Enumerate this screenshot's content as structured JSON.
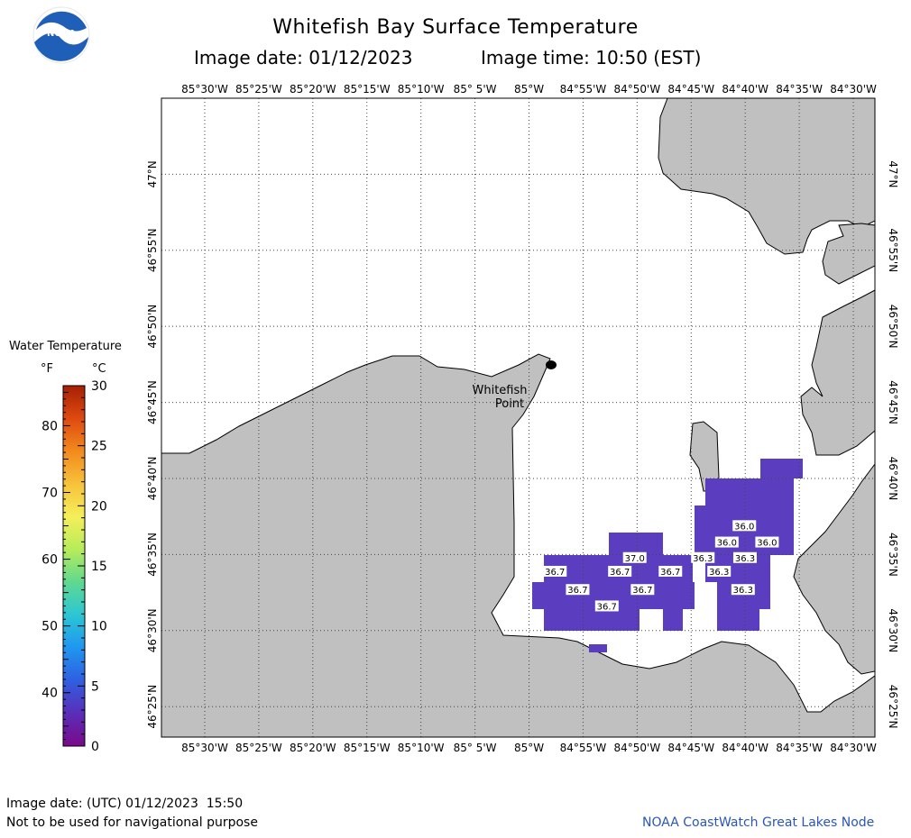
{
  "header": {
    "title": "Whitefish Bay Surface Temperature",
    "image_date": "Image date: 01/12/2023",
    "image_time": "Image time: 10:50 (EST)"
  },
  "logo": {
    "text": "NOAA",
    "icon": "noaa-logo-icon"
  },
  "map": {
    "lon_labels": [
      "85°30'W",
      "85°25'W",
      "85°20'W",
      "85°15'W",
      "85°10'W",
      "85° 5'W",
      "85°W",
      "84°55'W",
      "84°50'W",
      "84°45'W",
      "84°40'W",
      "84°35'W",
      "84°30'W"
    ],
    "lat_labels": [
      "47°N",
      "46°55'N",
      "46°50'N",
      "46°45'N",
      "46°40'N",
      "46°35'N",
      "46°30'N",
      "46°25'N"
    ],
    "place_label": [
      "Whitefish",
      "Point"
    ],
    "temperature_labels": [
      {
        "value": "36.0",
        "lon": -84.668,
        "lat": 46.615
      },
      {
        "value": "36.0",
        "lon": -84.695,
        "lat": 46.597
      },
      {
        "value": "36.0",
        "lon": -84.633,
        "lat": 46.597
      },
      {
        "value": "37.0",
        "lon": -84.837,
        "lat": 46.58
      },
      {
        "value": "36.3",
        "lon": -84.732,
        "lat": 46.58
      },
      {
        "value": "36.3",
        "lon": -84.667,
        "lat": 46.58
      },
      {
        "value": "36.7",
        "lon": -84.96,
        "lat": 46.565
      },
      {
        "value": "36.7",
        "lon": -84.86,
        "lat": 46.565
      },
      {
        "value": "36.7",
        "lon": -84.782,
        "lat": 46.565
      },
      {
        "value": "36.3",
        "lon": -84.707,
        "lat": 46.565
      },
      {
        "value": "36.7",
        "lon": -84.925,
        "lat": 46.545
      },
      {
        "value": "36.7",
        "lon": -84.825,
        "lat": 46.545
      },
      {
        "value": "36.3",
        "lon": -84.67,
        "lat": 46.545
      },
      {
        "value": "36.7",
        "lon": -84.88,
        "lat": 46.527
      }
    ]
  },
  "legend": {
    "title": "Water Temperature",
    "unit_f": "°F",
    "unit_c": "°C",
    "f_ticks": [
      "40",
      "50",
      "60",
      "70",
      "80"
    ],
    "c_ticks": [
      "0",
      "5",
      "10",
      "15",
      "20",
      "25",
      "30"
    ],
    "colors": [
      "#7a0a8a",
      "#5a2eb8",
      "#2f5fe0",
      "#1f96f0",
      "#2cc6d4",
      "#5fd890",
      "#b6ec5a",
      "#f5ef5a",
      "#f7c23a",
      "#f28a1e",
      "#de4a10",
      "#a52004"
    ]
  },
  "footer": {
    "utc_date": "Image date: (UTC) 01/12/2023  15:50",
    "disclaimer": "Not to be used for navigational purpose",
    "credit": "NOAA CoastWatch Great Lakes Node"
  },
  "colors": {
    "land": "#c0c0c0",
    "water_temp": "#5a3ebf",
    "grid": "#555555"
  }
}
